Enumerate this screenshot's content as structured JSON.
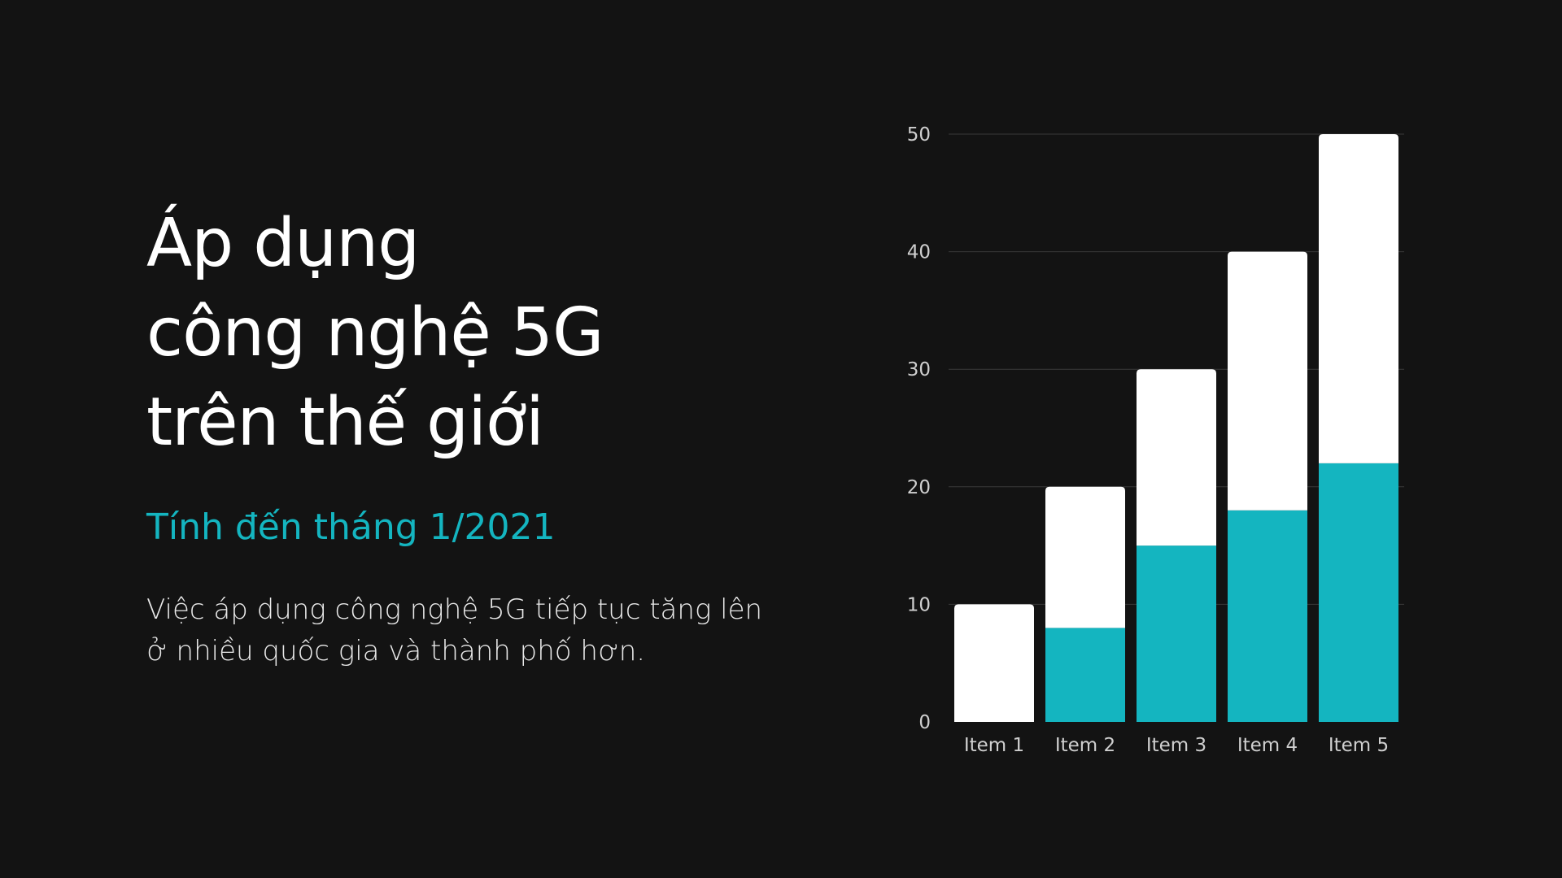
{
  "headline": {
    "lines": [
      "Áp dụng",
      "công nghệ 5G",
      "trên thế giới"
    ]
  },
  "subtitle": "Tính đến tháng 1/2021",
  "body": {
    "lines": [
      "Việc áp dụng công nghệ 5G tiếp tục tăng lên",
      "ở nhiều quốc gia và thành phố hơn."
    ]
  },
  "colors": {
    "background": "#131313",
    "accent": "#14b5c0",
    "bar_top": "#ffffff",
    "gridline": "#3a3a3a"
  },
  "chart_data": {
    "type": "bar",
    "stacked": true,
    "categories": [
      "Item 1",
      "Item 2",
      "Item 3",
      "Item 4",
      "Item 5"
    ],
    "series": [
      {
        "color": "#14b5c0",
        "values": [
          0,
          8,
          15,
          18,
          22
        ]
      },
      {
        "color": "#ffffff",
        "values": [
          10,
          12,
          15,
          22,
          28
        ]
      }
    ],
    "ylim": [
      0,
      50
    ],
    "yticks": [
      0,
      10,
      20,
      30,
      40,
      50
    ],
    "grid": true,
    "legend": "none"
  }
}
